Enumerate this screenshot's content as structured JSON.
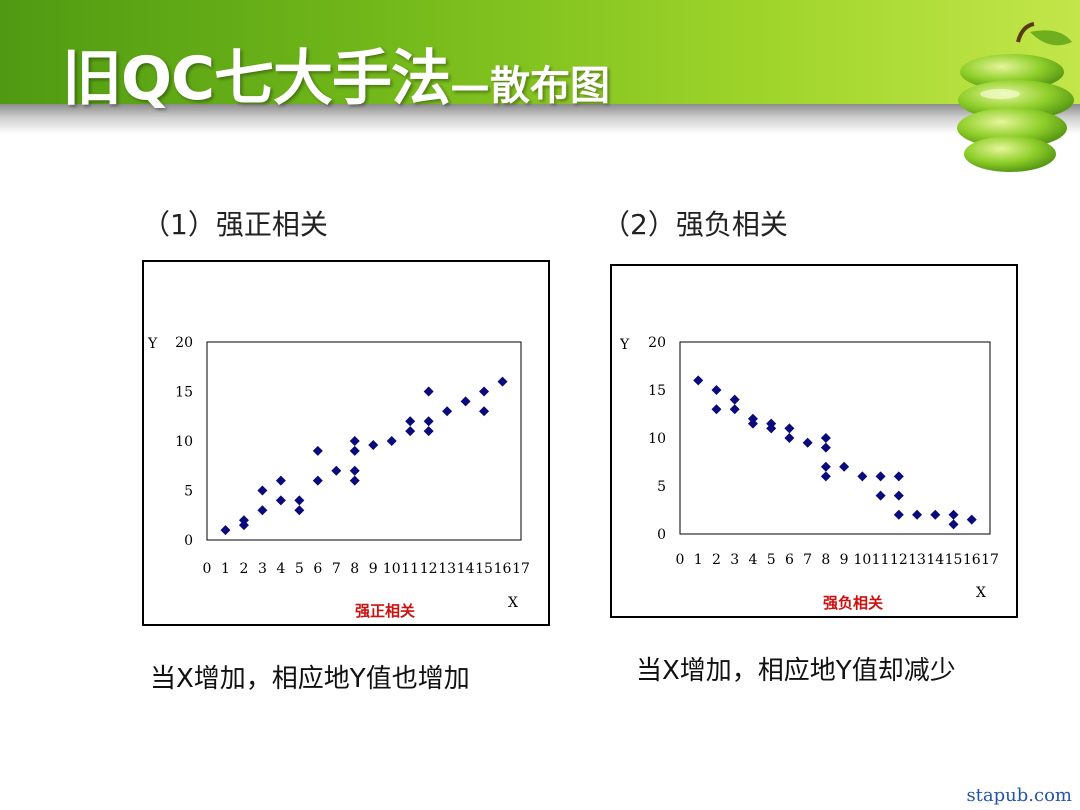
{
  "slide": {
    "title_main": "旧QC七大手法",
    "title_sub": "—散布图",
    "watermark": "stapub.com",
    "colors": {
      "header_dark": "#4f9a12",
      "header_light": "#c3e64a",
      "marker": "#0a0a7a",
      "chart_caption": "#cc1111"
    }
  },
  "sections": [
    {
      "heading": "（1）强正相关",
      "caption": "当X增加，相应地Y值也增加"
    },
    {
      "heading": "（2）强负相关",
      "caption": "当X增加，相应地Y值却减少"
    }
  ],
  "chart_data": [
    {
      "type": "scatter",
      "title": "强正相关",
      "xlabel": "X",
      "ylabel": "Y",
      "xlim": [
        0,
        17
      ],
      "ylim": [
        0,
        20
      ],
      "xticks": [
        0,
        1,
        2,
        3,
        4,
        5,
        6,
        7,
        8,
        9,
        10,
        11,
        12,
        13,
        14,
        15,
        16,
        17
      ],
      "yticks": [
        0,
        5,
        10,
        15,
        20
      ],
      "marker": "diamond",
      "marker_color": "#0a0a7a",
      "points": [
        [
          1,
          1
        ],
        [
          2,
          1.5
        ],
        [
          2,
          2
        ],
        [
          3,
          3
        ],
        [
          3,
          5
        ],
        [
          4,
          4
        ],
        [
          4,
          6
        ],
        [
          5,
          3
        ],
        [
          5,
          4
        ],
        [
          6,
          6
        ],
        [
          6,
          9
        ],
        [
          7,
          7
        ],
        [
          8,
          6
        ],
        [
          8,
          7
        ],
        [
          8,
          9
        ],
        [
          8,
          10
        ],
        [
          9,
          9.6
        ],
        [
          10,
          10
        ],
        [
          11,
          11
        ],
        [
          11,
          12
        ],
        [
          12,
          11
        ],
        [
          12,
          12
        ],
        [
          12,
          15
        ],
        [
          13,
          13
        ],
        [
          14,
          14
        ],
        [
          15,
          13
        ],
        [
          15,
          15
        ],
        [
          16,
          16
        ]
      ]
    },
    {
      "type": "scatter",
      "title": "强负相关",
      "xlabel": "X",
      "ylabel": "Y",
      "xlim": [
        0,
        17
      ],
      "ylim": [
        0,
        20
      ],
      "xticks": [
        0,
        1,
        2,
        3,
        4,
        5,
        6,
        7,
        8,
        9,
        10,
        11,
        12,
        13,
        14,
        15,
        16,
        17
      ],
      "yticks": [
        0,
        5,
        10,
        15,
        20
      ],
      "marker": "diamond",
      "marker_color": "#0a0a7a",
      "points": [
        [
          1,
          16
        ],
        [
          2,
          13
        ],
        [
          2,
          15
        ],
        [
          3,
          13
        ],
        [
          3,
          14
        ],
        [
          4,
          11.5
        ],
        [
          4,
          12
        ],
        [
          5,
          11
        ],
        [
          5,
          11.5
        ],
        [
          6,
          10
        ],
        [
          6,
          11
        ],
        [
          7,
          9.5
        ],
        [
          8,
          6
        ],
        [
          8,
          7
        ],
        [
          8,
          9
        ],
        [
          8,
          10
        ],
        [
          9,
          7
        ],
        [
          10,
          6
        ],
        [
          11,
          4
        ],
        [
          11,
          6
        ],
        [
          12,
          2
        ],
        [
          12,
          4
        ],
        [
          12,
          6
        ],
        [
          13,
          2
        ],
        [
          14,
          2
        ],
        [
          15,
          1
        ],
        [
          15,
          2
        ],
        [
          16,
          1.5
        ]
      ]
    }
  ]
}
